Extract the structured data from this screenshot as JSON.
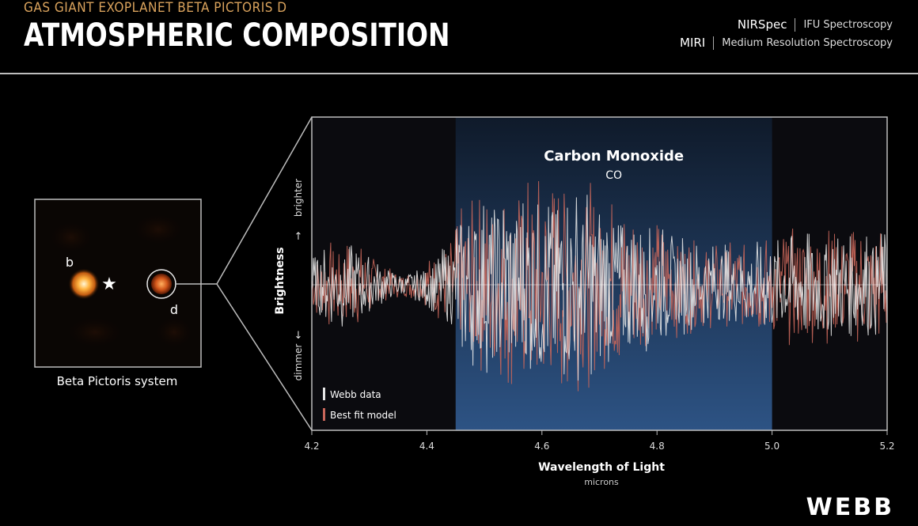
{
  "header": {
    "subtitle": "GAS GIANT EXOPLANET BETA PICTORIS d",
    "title": "ATMOSPHERIC COMPOSITION",
    "instruments": [
      {
        "name": "NIRSpec",
        "mode": "IFU Spectroscopy"
      },
      {
        "name": "MIRI",
        "mode": "Medium Resolution Spectroscopy"
      }
    ]
  },
  "inset": {
    "caption": "Beta Pictoris system",
    "label_b": "b",
    "label_d": "d"
  },
  "logo": "WEBB",
  "chart_data": {
    "type": "line",
    "title": "",
    "xlabel": "Wavelength of Light",
    "xunit": "microns",
    "ylabel": "Brightness",
    "y_top_label": "brighter",
    "y_bottom_label": "dimmer",
    "xlim": [
      4.2,
      5.2
    ],
    "xticks": [
      "4.2",
      "4.4",
      "4.6",
      "4.8",
      "5.0",
      "5.2"
    ],
    "highlight": {
      "label": "Carbon Monoxide",
      "formula": "CO",
      "range": [
        4.45,
        5.0
      ]
    },
    "legend": [
      "Webb data",
      "Best fit model"
    ],
    "colors": {
      "data": "#e6e6e6",
      "model": "#c8665a",
      "highlight": "#2b4a72"
    }
  }
}
